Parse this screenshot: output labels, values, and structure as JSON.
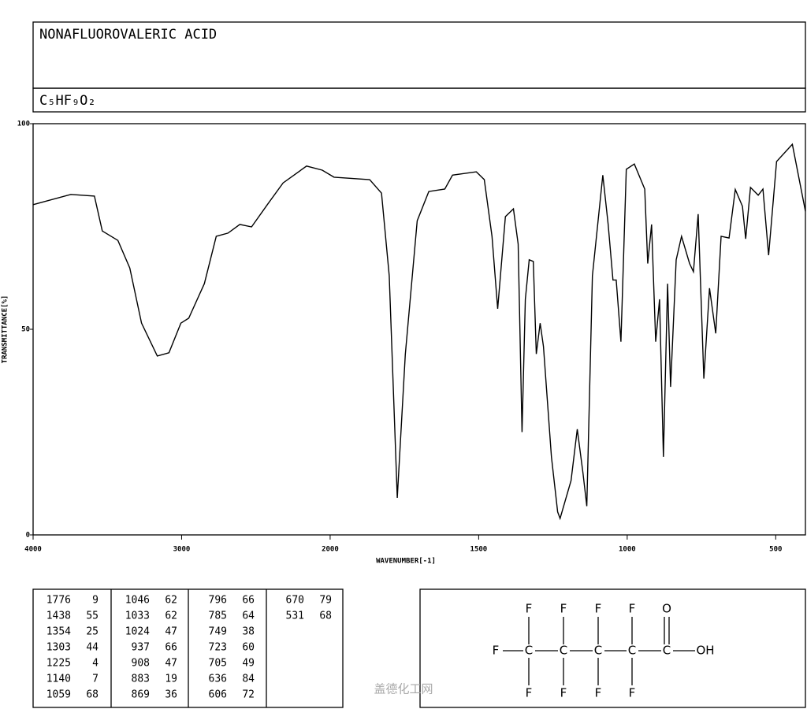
{
  "chart_data": {
    "type": "line",
    "title": "NONAFLUOROVALERIC ACID",
    "subtitle": "C₅HF₉O₂",
    "x_label": "WAVENUMBER[-1]",
    "y_label": "TRANSMITTANCE[%]",
    "xlim": [
      4000,
      400
    ],
    "ylim": [
      0,
      100
    ],
    "xticks": [
      4000,
      3000,
      2000,
      1500,
      1000,
      500
    ],
    "yticks": [
      0,
      50,
      100
    ],
    "x_scale_break": 2000,
    "x": [
      4000,
      3746,
      3587,
      3534,
      3429,
      3349,
      3270,
      3164,
      3085,
      3005,
      2952,
      2847,
      2767,
      2688,
      2608,
      2529,
      2423,
      2317,
      2159,
      2053,
      1987,
      1867,
      1827,
      1801,
      1774,
      1747,
      1707,
      1668,
      1614,
      1588,
      1508,
      1481,
      1455,
      1436,
      1410,
      1383,
      1367,
      1354,
      1343,
      1330,
      1316,
      1306,
      1293,
      1282,
      1255,
      1234,
      1226,
      1189,
      1168,
      1149,
      1136,
      1117,
      1082,
      1064,
      1048,
      1037,
      1021,
      1003,
      976,
      941,
      931,
      918,
      904,
      891,
      878,
      864,
      854,
      835,
      817,
      790,
      777,
      761,
      742,
      723,
      702,
      684,
      657,
      636,
      612,
      601,
      585,
      559,
      543,
      524,
      497,
      444,
      400
    ],
    "series": [
      {
        "color": "#000000",
        "values": [
          80.3,
          82.8,
          82.4,
          73.9,
          71.6,
          64.9,
          51.5,
          43.5,
          44.3,
          51.5,
          52.7,
          61.1,
          72.6,
          73.4,
          75.5,
          74.9,
          80.3,
          85.6,
          89.7,
          88.7,
          87.0,
          86.4,
          83.1,
          63.0,
          9,
          43.9,
          76.4,
          83.5,
          84.1,
          87.5,
          88.3,
          86.4,
          72.6,
          55,
          77.4,
          79.3,
          70.7,
          25,
          57.3,
          66.9,
          66.5,
          44,
          51.5,
          45.8,
          19.0,
          5.6,
          4,
          13.2,
          25.7,
          15.1,
          7,
          63.0,
          87.5,
          75.5,
          62,
          62,
          47,
          88.9,
          90.2,
          84.1,
          66,
          75.5,
          47,
          57.3,
          19,
          61.1,
          36,
          66.9,
          72.6,
          66,
          64,
          78.0,
          38,
          60,
          49,
          72.6,
          72.2,
          84,
          79.9,
          72,
          84.5,
          82.6,
          84.1,
          68,
          90.8,
          95.0,
          78.7
        ]
      }
    ]
  },
  "peak_table": [
    [
      [
        1776,
        9
      ],
      [
        1438,
        55
      ],
      [
        1354,
        25
      ],
      [
        1303,
        44
      ],
      [
        1225,
        4
      ],
      [
        1140,
        7
      ],
      [
        1059,
        68
      ]
    ],
    [
      [
        1046,
        62
      ],
      [
        1033,
        62
      ],
      [
        1024,
        47
      ],
      [
        937,
        66
      ],
      [
        908,
        47
      ],
      [
        883,
        19
      ],
      [
        869,
        36
      ]
    ],
    [
      [
        796,
        66
      ],
      [
        785,
        64
      ],
      [
        749,
        38
      ],
      [
        723,
        60
      ],
      [
        705,
        49
      ],
      [
        636,
        84
      ],
      [
        606,
        72
      ]
    ],
    [
      [
        670,
        79
      ],
      [
        531,
        68
      ]
    ]
  ],
  "structure": {
    "atoms": [
      "F",
      "F",
      "F",
      "F",
      "O",
      "F",
      "C",
      "C",
      "C",
      "C",
      "C",
      "OH",
      "F",
      "F",
      "F",
      "F"
    ]
  },
  "watermark": "盖德化工网"
}
